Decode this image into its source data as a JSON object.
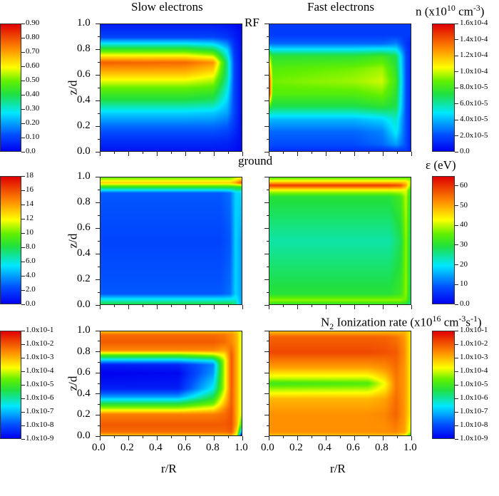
{
  "titles": {
    "slow": "Slow electrons",
    "fast": "Fast electrons",
    "rf": "RF",
    "ground": "ground"
  },
  "colorbar_titles": {
    "density": {
      "pre": "n (x10",
      "sup": "10",
      "post": " cm",
      "sup2": "-3",
      "end": ")"
    },
    "energy": "ε (eV)",
    "ionization": {
      "pre": "N",
      "sub": "2",
      "mid": " Ionization rate (x10",
      "sup": "16",
      "post": " cm",
      "sup2": "-3",
      "post2": "s",
      "sup3": "-1",
      "end": ")"
    }
  },
  "colors": {
    "jet": [
      "#0000f0",
      "#0050ff",
      "#00e8ff",
      "#20e040",
      "#60f000",
      "#ffff00",
      "#ff9000",
      "#e00000"
    ]
  },
  "chart_data": [
    {
      "type": "heatmap",
      "id": "slow-density",
      "title": "Slow electrons",
      "xlabel": "r/R",
      "ylabel": "z/d",
      "xlim": [
        0,
        1
      ],
      "ylim": [
        0,
        1
      ],
      "clim": [
        0,
        0.9
      ],
      "colorbar_ticks": [
        "0.0",
        "0.10",
        "0.20",
        "0.30",
        "0.40",
        "0.50",
        "0.60",
        "0.70",
        "0.80",
        "0.90"
      ],
      "r": [
        0,
        0.6,
        0.8,
        0.9,
        0.95,
        1.0
      ],
      "z": [
        0,
        0.1,
        0.2,
        0.3,
        0.4,
        0.5,
        0.6,
        0.7,
        0.8,
        0.9,
        1.0
      ],
      "values": [
        [
          0.03,
          0.03,
          0.03,
          0.03,
          0.02,
          0.01
        ],
        [
          0.08,
          0.08,
          0.08,
          0.07,
          0.05,
          0.02
        ],
        [
          0.15,
          0.15,
          0.15,
          0.13,
          0.08,
          0.02
        ],
        [
          0.25,
          0.25,
          0.24,
          0.2,
          0.1,
          0.02
        ],
        [
          0.4,
          0.4,
          0.38,
          0.25,
          0.1,
          0.02
        ],
        [
          0.5,
          0.5,
          0.48,
          0.3,
          0.1,
          0.02
        ],
        [
          0.65,
          0.65,
          0.6,
          0.35,
          0.1,
          0.02
        ],
        [
          0.78,
          0.77,
          0.72,
          0.35,
          0.1,
          0.02
        ],
        [
          0.45,
          0.45,
          0.4,
          0.25,
          0.08,
          0.02
        ],
        [
          0.1,
          0.1,
          0.1,
          0.08,
          0.05,
          0.02
        ],
        [
          0.04,
          0.04,
          0.04,
          0.03,
          0.02,
          0.01
        ]
      ]
    },
    {
      "type": "heatmap",
      "id": "fast-density",
      "title": "Fast electrons",
      "xlabel": "r/R",
      "ylabel": "z/d",
      "xlim": [
        0,
        1
      ],
      "ylim": [
        0,
        1
      ],
      "clim": [
        0,
        0.00016
      ],
      "colorbar_ticks": [
        "0.0",
        "2.0x10-5",
        "4.0x10-5",
        "6.0x10-5",
        "8.0x10-5",
        "1.0x10-4",
        "1.2x10-4",
        "1.4x10-4",
        "1.6x10-4"
      ],
      "r": [
        0,
        0.02,
        0.6,
        0.8,
        0.9,
        0.97,
        1.0
      ],
      "z": [
        0,
        0.05,
        0.15,
        0.25,
        0.35,
        0.45,
        0.55,
        0.65,
        0.75,
        0.85,
        0.92,
        1.0
      ],
      "values": [
        [
          1.5e-05,
          1.2e-05,
          1.2e-05,
          1.2e-05,
          1.5e-05,
          1.5e-05,
          1e-05
        ],
        [
          2e-05,
          2e-05,
          2e-05,
          2.5e-05,
          3.5e-05,
          2e-05,
          1e-05
        ],
        [
          2.5e-05,
          2.5e-05,
          2.5e-05,
          3e-05,
          5e-05,
          2e-05,
          1e-05
        ],
        [
          4e-05,
          4e-05,
          4e-05,
          4.5e-05,
          5.5e-05,
          2e-05,
          1e-05
        ],
        [
          8e-05,
          7e-05,
          7e-05,
          7.5e-05,
          7e-05,
          2e-05,
          1e-05
        ],
        [
          0.00014,
          8.5e-05,
          8.5e-05,
          9e-05,
          7.5e-05,
          2e-05,
          1e-05
        ],
        [
          0.00014,
          9e-05,
          9.5e-05,
          0.0001,
          8e-05,
          2e-05,
          1e-05
        ],
        [
          0.00012,
          8.5e-05,
          9e-05,
          9.5e-05,
          7.5e-05,
          2e-05,
          1e-05
        ],
        [
          9e-05,
          7.5e-05,
          7.5e-05,
          8e-05,
          7e-05,
          2e-05,
          1e-05
        ],
        [
          2.5e-05,
          2.5e-05,
          2.5e-05,
          2.5e-05,
          3e-05,
          1.5e-05,
          1e-05
        ],
        [
          1.5e-05,
          1.5e-05,
          1.5e-05,
          1.5e-05,
          1.5e-05,
          1.5e-05,
          1.5e-05
        ],
        [
          1.5e-05,
          1.5e-05,
          1.5e-05,
          1.5e-05,
          1.5e-05,
          1.5e-05,
          1.5e-05
        ]
      ]
    },
    {
      "type": "heatmap",
      "id": "slow-energy",
      "xlabel": "r/R",
      "ylabel": "z/d",
      "xlim": [
        0,
        1
      ],
      "ylim": [
        0,
        1
      ],
      "clim": [
        0,
        18
      ],
      "colorbar_ticks": [
        "0.0",
        "2.0",
        "4.0",
        "6.0",
        "8.0",
        "10",
        "12",
        "14",
        "16",
        "18"
      ],
      "r": [
        0,
        0.85,
        0.92,
        0.96,
        1.0
      ],
      "z": [
        0,
        0.03,
        0.08,
        0.5,
        0.88,
        0.93,
        0.96,
        1.0
      ],
      "values": [
        [
          8,
          8,
          8,
          7,
          4
        ],
        [
          6,
          6,
          6,
          6,
          4
        ],
        [
          2.5,
          2.5,
          3,
          5,
          4
        ],
        [
          2,
          2,
          2.5,
          5,
          4
        ],
        [
          2.5,
          2.5,
          3,
          5,
          5
        ],
        [
          9,
          9,
          9,
          9,
          9
        ],
        [
          13,
          13,
          13,
          14,
          16
        ],
        [
          10,
          10,
          10,
          11,
          12
        ]
      ]
    },
    {
      "type": "heatmap",
      "id": "fast-energy",
      "xlabel": "r/R",
      "ylabel": "z/d",
      "xlim": [
        0,
        1
      ],
      "ylim": [
        0,
        1
      ],
      "clim": [
        0,
        65
      ],
      "colorbar_ticks": [
        "0.0",
        "10",
        "20",
        "30",
        "40",
        "50",
        "60"
      ],
      "r": [
        0,
        0.85,
        0.93,
        0.97,
        1.0
      ],
      "z": [
        0,
        0.03,
        0.08,
        0.5,
        0.85,
        0.9,
        0.94,
        0.97,
        1.0
      ],
      "values": [
        [
          32,
          32,
          32,
          30,
          25
        ],
        [
          38,
          38,
          38,
          36,
          28
        ],
        [
          30,
          30,
          32,
          38,
          28
        ],
        [
          24,
          24,
          28,
          38,
          28
        ],
        [
          30,
          30,
          33,
          40,
          30
        ],
        [
          42,
          42,
          42,
          42,
          32
        ],
        [
          60,
          60,
          58,
          50,
          38
        ],
        [
          45,
          45,
          45,
          45,
          40
        ],
        [
          35,
          35,
          35,
          35,
          35
        ]
      ]
    },
    {
      "type": "heatmap",
      "id": "slow-ionization",
      "xlabel": "r/R",
      "ylabel": "z/d",
      "xlim": [
        0,
        1
      ],
      "ylim": [
        0,
        1
      ],
      "scale": "log10",
      "clim": [
        -9,
        -1
      ],
      "colorbar_ticks": [
        "1.0x10-9",
        "1.0x10-8",
        "1.0x10-7",
        "1.0x10-6",
        "1.0x10-5",
        "1.0x10-4",
        "1.0x10-3",
        "1.0x10-2",
        "1.0x10-1"
      ],
      "r": [
        0,
        0.55,
        0.8,
        0.88,
        0.93,
        0.97,
        1.0
      ],
      "z": [
        0,
        0.03,
        0.1,
        0.2,
        0.25,
        0.3,
        0.37,
        0.45,
        0.6,
        0.68,
        0.72,
        0.78,
        0.82,
        0.9,
        0.97,
        1.0
      ],
      "values": [
        [
          -3,
          -3,
          -3,
          -3,
          -2.8,
          -4,
          -9
        ],
        [
          -2.2,
          -2.2,
          -2.2,
          -2.2,
          -2,
          -3.5,
          -7
        ],
        [
          -2,
          -2,
          -2,
          -2,
          -1.9,
          -3,
          -5
        ],
        [
          -2.4,
          -2.4,
          -2.4,
          -2.2,
          -1.9,
          -3,
          -4
        ],
        [
          -4,
          -4,
          -3.5,
          -2.5,
          -1.9,
          -3,
          -4
        ],
        [
          -5.3,
          -5.3,
          -4.5,
          -3,
          -2,
          -3,
          -4
        ],
        [
          -7.3,
          -7.3,
          -5.5,
          -3.5,
          -2,
          -3,
          -4
        ],
        [
          -8.6,
          -8.6,
          -6.5,
          -4,
          -2,
          -3,
          -4
        ],
        [
          -9,
          -8.9,
          -7.3,
          -4,
          -2,
          -3,
          -4
        ],
        [
          -8.6,
          -8.5,
          -7.5,
          -4,
          -2,
          -3,
          -4
        ],
        [
          -7,
          -7,
          -6.5,
          -4,
          -2,
          -3,
          -4
        ],
        [
          -4.5,
          -4.5,
          -4,
          -3.5,
          -2,
          -3,
          -4
        ],
        [
          -2.5,
          -2.5,
          -2.5,
          -2.8,
          -2.2,
          -3,
          -4
        ],
        [
          -2,
          -2,
          -2,
          -2.2,
          -2.5,
          -3,
          -4
        ],
        [
          -2.2,
          -2.2,
          -2.2,
          -2.3,
          -2.6,
          -3,
          -4
        ],
        [
          -3,
          -3,
          -3,
          -3,
          -3,
          -3.3,
          -4
        ]
      ]
    },
    {
      "type": "heatmap",
      "id": "fast-ionization",
      "xlabel": "r/R",
      "ylabel": "z/d",
      "xlim": [
        0,
        1
      ],
      "ylim": [
        0,
        1
      ],
      "scale": "log10",
      "clim": [
        -9,
        -1
      ],
      "colorbar_ticks": [
        "1.0x10-9",
        "1.0x10-8",
        "1.0x10-7",
        "1.0x10-6",
        "1.0x10-5",
        "1.0x10-4",
        "1.0x10-3",
        "1.0x10-2",
        "1.0x10-1"
      ],
      "r": [
        0,
        0.7,
        0.82,
        0.9,
        0.96,
        1.0
      ],
      "z": [
        0,
        0.03,
        0.2,
        0.35,
        0.45,
        0.5,
        0.55,
        0.65,
        0.8,
        0.95,
        1.0
      ],
      "values": [
        [
          -3,
          -3,
          -3,
          -3,
          -3.5,
          -5
        ],
        [
          -2.6,
          -2.6,
          -2.6,
          -2.5,
          -2.8,
          -4
        ],
        [
          -2.6,
          -2.6,
          -2.5,
          -2.1,
          -2.7,
          -3.5
        ],
        [
          -3,
          -3,
          -2.8,
          -2.2,
          -2.7,
          -3.5
        ],
        [
          -4.3,
          -4.2,
          -3.5,
          -2.3,
          -2.7,
          -3.5
        ],
        [
          -5,
          -4.8,
          -3.7,
          -2.3,
          -2.7,
          -3.5
        ],
        [
          -4,
          -4,
          -3.3,
          -2.3,
          -2.7,
          -3.5
        ],
        [
          -2.8,
          -2.8,
          -2.6,
          -2.2,
          -2.7,
          -3.5
        ],
        [
          -1.8,
          -1.8,
          -1.9,
          -2,
          -2.6,
          -3.5
        ],
        [
          -2.1,
          -2.1,
          -2.1,
          -2.3,
          -2.7,
          -3.5
        ],
        [
          -3,
          -3,
          -3,
          -3,
          -3,
          -3.5
        ]
      ]
    }
  ],
  "axes": {
    "yticks": [
      "0.0",
      "0.2",
      "0.4",
      "0.6",
      "0.8",
      "1.0"
    ],
    "xticks": [
      "0.0",
      "0.2",
      "0.4",
      "0.6",
      "0.8",
      "1.0"
    ],
    "ylabel": "z/d",
    "xlabel": "r/R"
  }
}
